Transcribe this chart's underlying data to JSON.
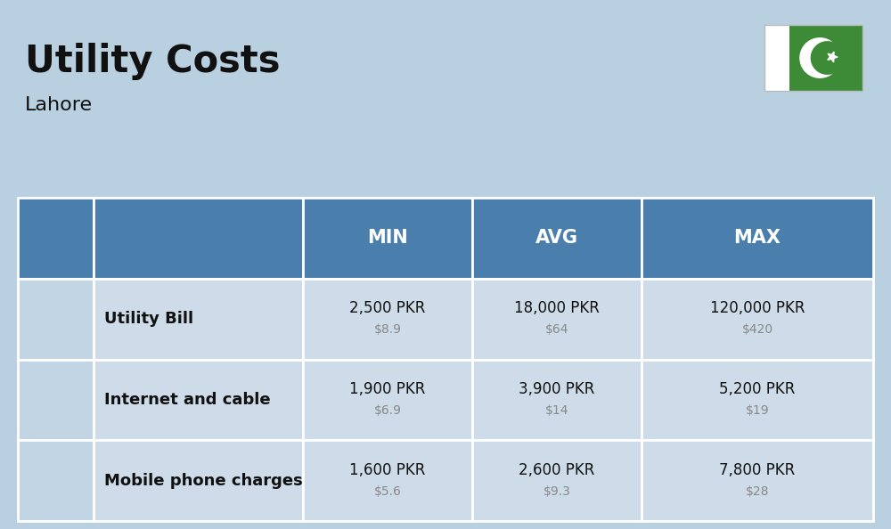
{
  "title": "Utility Costs",
  "subtitle": "Lahore",
  "background_color": "#b8d0e0",
  "header_color": "#4a7fad",
  "header_text_color": "#ffffff",
  "row_color": "#cddce8",
  "icon_col_color": "#c2d5e4",
  "text_color": "#111111",
  "usd_color": "#888888",
  "columns": [
    "MIN",
    "AVG",
    "MAX"
  ],
  "rows": [
    {
      "label": "Utility Bill",
      "min_pkr": "2,500 PKR",
      "min_usd": "$8.9",
      "avg_pkr": "18,000 PKR",
      "avg_usd": "$64",
      "max_pkr": "120,000 PKR",
      "max_usd": "$420"
    },
    {
      "label": "Internet and cable",
      "min_pkr": "1,900 PKR",
      "min_usd": "$6.9",
      "avg_pkr": "3,900 PKR",
      "avg_usd": "$14",
      "max_pkr": "5,200 PKR",
      "max_usd": "$19"
    },
    {
      "label": "Mobile phone charges",
      "min_pkr": "1,600 PKR",
      "min_usd": "$5.6",
      "avg_pkr": "2,600 PKR",
      "avg_usd": "$9.3",
      "max_pkr": "7,800 PKR",
      "max_usd": "$28"
    }
  ]
}
